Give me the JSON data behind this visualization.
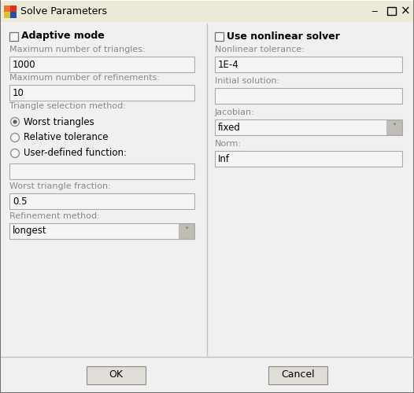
{
  "title": "Solve Parameters",
  "bg_outer": "#d4d0c8",
  "bg_panel": "#ece9d8",
  "bg_content": "#f0f0f0",
  "border_dark": "#808080",
  "border_light": "#ffffff",
  "label_gray": "#888888",
  "text_black": "#000000",
  "input_bg": "#f5f5f5",
  "input_border": "#aaaaaa",
  "btn_bg": "#e0ddd6",
  "btn_border": "#888888",
  "divider": "#c8c8c8",
  "dropdown_arrow_bg": "#c0bdb5",
  "left_checkbox": "Adaptive mode",
  "left_fields": [
    {
      "label": "Maximum number of triangles:",
      "value": "1000",
      "dropdown": false
    },
    {
      "label": "Maximum number of refinements:",
      "value": "10",
      "dropdown": false
    }
  ],
  "radio_group_label": "Triangle selection method:",
  "radio_options": [
    "Worst triangles",
    "Relative tolerance",
    "User-defined function:"
  ],
  "radio_selected": 0,
  "left_extra_fields": [
    {
      "label": "Worst triangle fraction:",
      "value": "0.5",
      "dropdown": false
    },
    {
      "label": "Refinement method:",
      "value": "longest",
      "dropdown": true
    }
  ],
  "right_checkbox": "Use nonlinear solver",
  "right_fields": [
    {
      "label": "Nonlinear tolerance:",
      "value": "1E-4",
      "dropdown": false
    },
    {
      "label": "Initial solution:",
      "value": "",
      "dropdown": false
    },
    {
      "label": "Jacobian:",
      "value": "fixed",
      "dropdown": true
    },
    {
      "label": "Norm:",
      "value": "Inf",
      "dropdown": false
    }
  ],
  "buttons": [
    "OK",
    "Cancel"
  ]
}
